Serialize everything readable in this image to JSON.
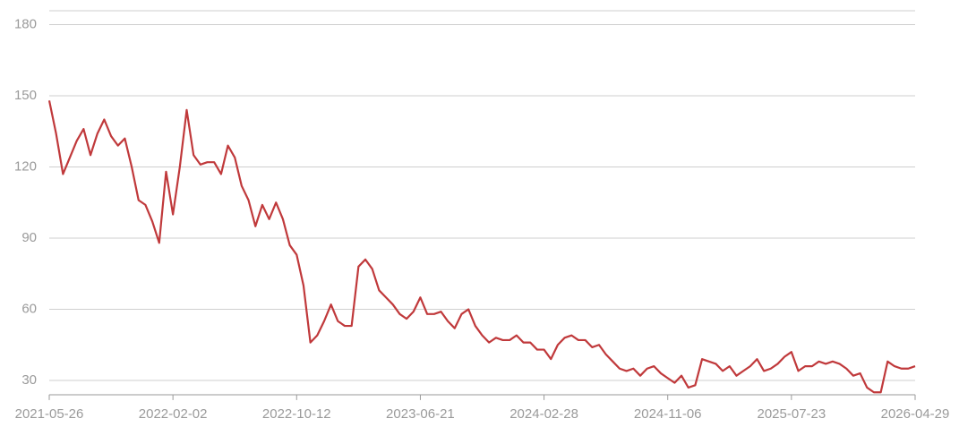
{
  "chart_data": {
    "type": "line",
    "x": [
      "2021-05-26",
      "2021-06-09",
      "2021-06-23",
      "2021-07-07",
      "2021-07-21",
      "2021-08-04",
      "2021-08-18",
      "2021-09-01",
      "2021-09-15",
      "2021-09-29",
      "2021-10-13",
      "2021-10-27",
      "2021-11-10",
      "2021-11-24",
      "2021-12-08",
      "2021-12-22",
      "2022-01-05",
      "2022-01-19",
      "2022-02-02",
      "2022-02-16",
      "2022-03-02",
      "2022-03-16",
      "2022-03-30",
      "2022-04-13",
      "2022-04-27",
      "2022-05-11",
      "2022-05-25",
      "2022-06-08",
      "2022-06-22",
      "2022-07-06",
      "2022-07-20",
      "2022-08-03",
      "2022-08-17",
      "2022-08-31",
      "2022-09-14",
      "2022-09-28",
      "2022-10-12",
      "2022-10-26",
      "2022-11-09",
      "2022-11-23",
      "2022-12-07",
      "2022-12-21",
      "2023-01-04",
      "2023-01-18",
      "2023-02-01",
      "2023-02-15",
      "2023-03-01",
      "2023-03-15",
      "2023-03-29",
      "2023-04-12",
      "2023-04-26",
      "2023-05-10",
      "2023-05-24",
      "2023-06-07",
      "2023-06-21",
      "2023-07-05",
      "2023-07-19",
      "2023-08-02",
      "2023-08-16",
      "2023-08-30",
      "2023-09-13",
      "2023-09-27",
      "2023-10-11",
      "2023-10-25",
      "2023-11-08",
      "2023-11-22",
      "2023-12-06",
      "2023-12-20",
      "2024-01-03",
      "2024-01-17",
      "2024-01-31",
      "2024-02-14",
      "2024-02-28",
      "2024-03-13",
      "2024-03-27",
      "2024-04-10",
      "2024-04-24",
      "2024-05-08",
      "2024-05-22",
      "2024-06-05",
      "2024-06-19",
      "2024-07-03",
      "2024-07-17",
      "2024-07-31",
      "2024-08-14",
      "2024-08-28",
      "2024-09-11",
      "2024-09-25",
      "2024-10-09",
      "2024-10-23",
      "2024-11-06",
      "2024-11-20",
      "2024-12-04",
      "2024-12-18",
      "2025-01-01",
      "2025-01-15",
      "2025-01-29",
      "2025-02-12",
      "2025-02-26",
      "2025-03-12",
      "2025-03-26",
      "2025-04-09",
      "2025-04-23",
      "2025-05-07",
      "2025-05-21",
      "2025-06-04",
      "2025-06-18",
      "2025-07-02",
      "2025-07-23",
      "2025-08-06",
      "2025-08-20",
      "2025-09-03",
      "2025-09-17",
      "2025-10-01",
      "2025-10-15",
      "2025-10-29",
      "2025-11-12",
      "2025-11-26",
      "2025-12-10",
      "2025-12-24",
      "2026-01-07",
      "2026-01-21",
      "2026-02-04",
      "2026-02-18",
      "2026-03-04",
      "2026-03-18",
      "2026-04-29"
    ],
    "values": [
      148,
      134,
      117,
      124,
      131,
      136,
      125,
      134,
      140,
      133,
      129,
      132,
      120,
      106,
      104,
      97,
      88,
      118,
      100,
      120,
      144,
      125,
      121,
      122,
      122,
      117,
      129,
      124,
      112,
      106,
      95,
      104,
      98,
      105,
      98,
      87,
      83,
      70,
      46,
      49,
      55,
      62,
      55,
      53,
      53,
      78,
      81,
      77,
      68,
      65,
      62,
      58,
      56,
      59,
      65,
      58,
      58,
      59,
      55,
      52,
      58,
      60,
      53,
      49,
      46,
      48,
      47,
      47,
      49,
      46,
      46,
      43,
      43,
      39,
      45,
      48,
      49,
      47,
      47,
      44,
      45,
      41,
      38,
      35,
      34,
      35,
      32,
      35,
      36,
      33,
      31,
      29,
      32,
      27,
      28,
      39,
      38,
      37,
      34,
      36,
      32,
      34,
      36,
      39,
      34,
      35,
      37,
      40,
      42,
      34,
      36,
      36,
      38,
      37,
      38,
      37,
      35,
      32,
      33,
      27,
      25,
      25,
      38,
      36,
      35,
      35,
      36
    ],
    "color": "#c0393b",
    "xticks": [
      "2021-05-26",
      "2022-02-02",
      "2022-10-12",
      "2023-06-21",
      "2024-02-28",
      "2024-11-06",
      "2025-07-23",
      "2026-04-29"
    ],
    "ylim": [
      24,
      186
    ],
    "yticks": [
      30,
      60,
      90,
      120,
      150,
      180
    ],
    "grid": true
  }
}
